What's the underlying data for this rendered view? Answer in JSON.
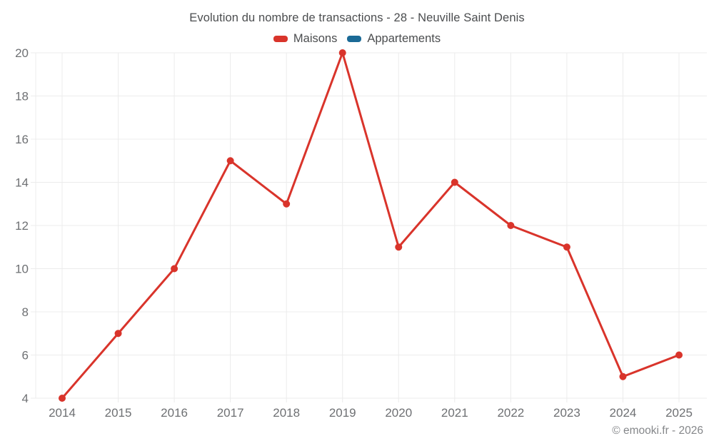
{
  "header": {
    "title": "Evolution du nombre de transactions - 28 - Neuville Saint Denis"
  },
  "footer": {
    "copyright": "© emooki.fr - 2026"
  },
  "colors": {
    "maisons": "#d9342b",
    "appartements": "#1b6a96",
    "grid": "#ececec",
    "axis_text": "#6e7073",
    "title_text": "#4b4d4f",
    "copyright_text": "#85878a",
    "background": "#ffffff"
  },
  "chart_data": {
    "type": "line",
    "title": "Evolution du nombre de transactions - 28 - Neuville Saint Denis",
    "categories": [
      "2014",
      "2015",
      "2016",
      "2017",
      "2018",
      "2019",
      "2020",
      "2021",
      "2022",
      "2023",
      "2024",
      "2025"
    ],
    "series": [
      {
        "name": "Maisons",
        "color": "#d9342b",
        "values": [
          4,
          7,
          10,
          15,
          13,
          20,
          11,
          14,
          12,
          11,
          5,
          6
        ]
      },
      {
        "name": "Appartements",
        "color": "#1b6a96",
        "values": []
      }
    ],
    "xlabel": "",
    "ylabel": "",
    "ylim": [
      4,
      20
    ],
    "yticks": [
      4,
      6,
      8,
      10,
      12,
      14,
      16,
      18,
      20
    ],
    "grid": true,
    "legend_position": "top",
    "marker": "circle"
  }
}
